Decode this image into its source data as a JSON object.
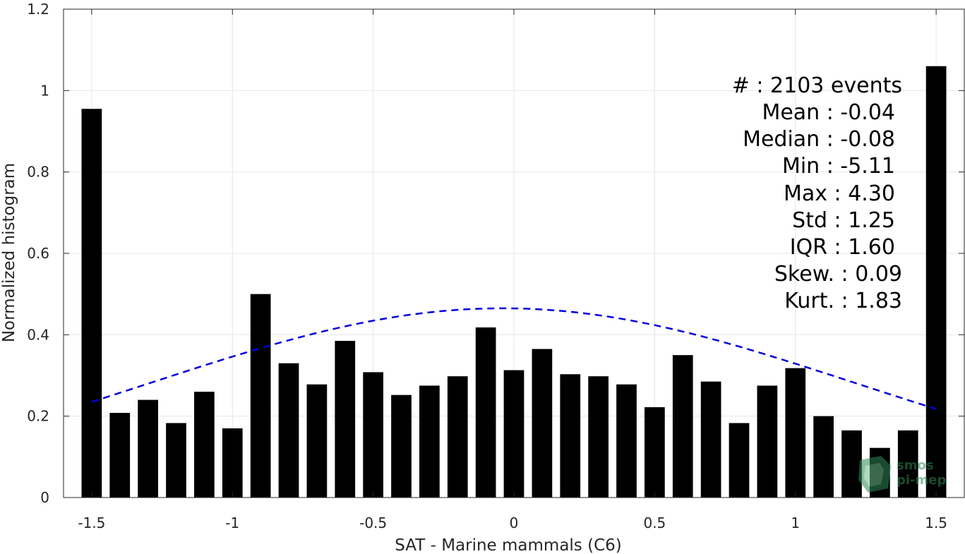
{
  "chart_data": {
    "type": "bar",
    "x": [
      -1.5,
      -1.4,
      -1.3,
      -1.2,
      -1.1,
      -1.0,
      -0.9,
      -0.8,
      -0.7,
      -0.6,
      -0.5,
      -0.4,
      -0.3,
      -0.2,
      -0.1,
      0.0,
      0.1,
      0.2,
      0.3,
      0.4,
      0.5,
      0.6,
      0.7,
      0.8,
      0.9,
      1.0,
      1.1,
      1.2,
      1.3,
      1.4,
      1.5
    ],
    "values": [
      0.955,
      0.208,
      0.24,
      0.183,
      0.26,
      0.17,
      0.5,
      0.33,
      0.278,
      0.385,
      0.308,
      0.252,
      0.275,
      0.298,
      0.418,
      0.313,
      0.365,
      0.303,
      0.298,
      0.278,
      0.222,
      0.35,
      0.285,
      0.183,
      0.275,
      0.318,
      0.2,
      0.165,
      0.122,
      0.165,
      1.06
    ],
    "fit_curve": {
      "style": "dashed",
      "color": "#0000dd",
      "mean": -0.04,
      "std": 1.25,
      "peak": 0.465
    },
    "title": "",
    "xlabel": "SAT - Marine mammals (C6)",
    "ylabel": "Normalized histogram",
    "xlim": [
      -1.6,
      1.6
    ],
    "ylim": [
      0,
      1.2
    ],
    "xticks": [
      "-1.5",
      "-1",
      "-0.5",
      "0",
      "0.5",
      "1",
      "1.5"
    ],
    "yticks": [
      "0",
      "0.2",
      "0.4",
      "0.6",
      "0.8",
      "1",
      "1.2"
    ],
    "grid": true,
    "bar_color": "#000000"
  },
  "stats": [
    "#  : 2103 events",
    "Mean : -0.04",
    "Median : -0.08",
    "Min : -5.11",
    "Max : 4.30",
    "Std : 1.25",
    "IQR : 1.60",
    "Skew. : 0.09",
    "Kurt. : 1.83"
  ],
  "logo": {
    "line1": "smos",
    "line2": "pi-mep"
  }
}
